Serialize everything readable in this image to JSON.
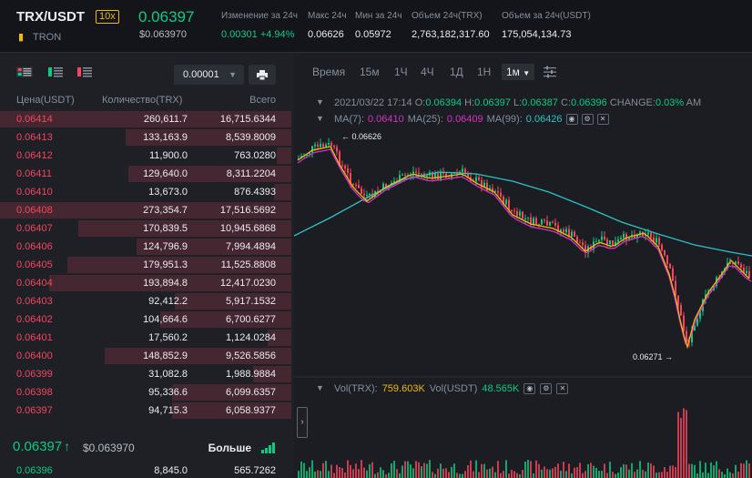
{
  "header": {
    "pair": "TRX/USDT",
    "leverage": "10x",
    "coin_name": "TRON",
    "last_price": "0.06397",
    "last_price_usd": "$0.063970",
    "stats": [
      {
        "label": "Изменение за 24ч",
        "value": "0.00301 +4.94%",
        "up": true
      },
      {
        "label": "Макс 24ч",
        "value": "0.06626"
      },
      {
        "label": "Мин за 24ч",
        "value": "0.05972"
      },
      {
        "label": "Объем 24ч(TRX)",
        "value": "2,763,182,317.60"
      },
      {
        "label": "Объем за 24ч(USDT)",
        "value": "175,054,134.73"
      }
    ]
  },
  "orderbook": {
    "precision": "0.00001",
    "headers": {
      "price": "Цена(USDT)",
      "qty": "Количество(TRX)",
      "total": "Всего"
    },
    "asks": [
      {
        "price": "0.06414",
        "qty": "260,611.7",
        "total": "16,715.6344",
        "depth": 1.0
      },
      {
        "price": "0.06413",
        "qty": "133,163.9",
        "total": "8,539.8009",
        "depth": 0.57
      },
      {
        "price": "0.06412",
        "qty": "11,900.0",
        "total": "763.0280",
        "depth": 0.05
      },
      {
        "price": "0.06411",
        "qty": "129,640.0",
        "total": "8,311.2204",
        "depth": 0.56
      },
      {
        "price": "0.06410",
        "qty": "13,673.0",
        "total": "876.4393",
        "depth": 0.06
      },
      {
        "price": "0.06408",
        "qty": "273,354.7",
        "total": "17,516.5692",
        "depth": 1.0
      },
      {
        "price": "0.06407",
        "qty": "170,839.5",
        "total": "10,945.6868",
        "depth": 0.73
      },
      {
        "price": "0.06406",
        "qty": "124,796.9",
        "total": "7,994.4894",
        "depth": 0.53
      },
      {
        "price": "0.06405",
        "qty": "179,951.3",
        "total": "11,525.8808",
        "depth": 0.77
      },
      {
        "price": "0.06404",
        "qty": "193,894.8",
        "total": "12,417.0230",
        "depth": 0.83
      },
      {
        "price": "0.06403",
        "qty": "92,412.2",
        "total": "5,917.1532",
        "depth": 0.4
      },
      {
        "price": "0.06402",
        "qty": "104,664.6",
        "total": "6,700.6277",
        "depth": 0.45
      },
      {
        "price": "0.06401",
        "qty": "17,560.2",
        "total": "1,124.0284",
        "depth": 0.08
      },
      {
        "price": "0.06400",
        "qty": "148,852.9",
        "total": "9,526.5856",
        "depth": 0.64
      },
      {
        "price": "0.06399",
        "qty": "31,082.8",
        "total": "1,988.9884",
        "depth": 0.13
      },
      {
        "price": "0.06398",
        "qty": "95,336.6",
        "total": "6,099.6357",
        "depth": 0.41
      },
      {
        "price": "0.06397",
        "qty": "94,715.3",
        "total": "6,058.9377",
        "depth": 0.41
      }
    ],
    "mid": {
      "price": "0.06397",
      "arrow": "↑",
      "usd": "$0.063970",
      "more": "Больше"
    },
    "bid_first": {
      "price": "0.06396",
      "qty": "8,845.0",
      "total": "565.7262"
    }
  },
  "chart": {
    "intervals": [
      "Время",
      "15м",
      "1Ч",
      "4Ч",
      "1Д",
      "1Н"
    ],
    "active_interval": "1м",
    "info": {
      "date": "2021/03/22 17:14",
      "o_label": "O:",
      "o": "0.06394",
      "h_label": "H:",
      "h": "0.06397",
      "l_label": "L:",
      "l": "0.06387",
      "c_label": "C:",
      "c": "0.06396",
      "change_label": "CHANGE:",
      "change": "0.03%",
      "amp": "AM"
    },
    "ma": {
      "ma7_label": "MA(7):",
      "ma7": "0.06410",
      "ma25_label": "MA(25):",
      "ma25": "0.06409",
      "ma99_label": "MA(99):",
      "ma99": "0.06426"
    },
    "annotations": {
      "high": "0.06626",
      "low": "0.06271"
    },
    "vol": {
      "trx_label": "Vol(TRX):",
      "trx": "759.603K",
      "usdt_label": "Vol(USDT)",
      "usdt": "48.565K"
    },
    "colors": {
      "up": "#0ecb81",
      "down": "#f6465d",
      "ma7": "#f0b90b",
      "ma25": "#d633c5",
      "ma99": "#2ac3c6"
    }
  }
}
